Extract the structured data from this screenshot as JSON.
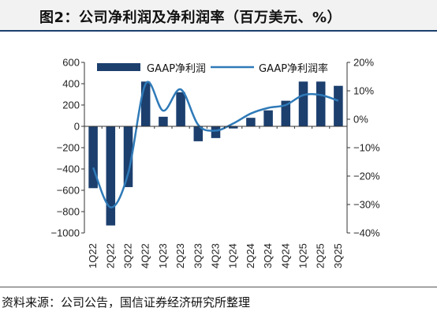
{
  "header": {
    "title": "图2：公司净利润及净利润率（百万美元、%）"
  },
  "footer": {
    "source": "资料来源：公司公告，国信证券经济研究所整理"
  },
  "colors": {
    "bar": "#1c3f6e",
    "line": "#2f7ab8",
    "axis": "#333333"
  },
  "chart_data": {
    "type": "bar",
    "categories": [
      "1Q22",
      "2Q22",
      "3Q22",
      "4Q22",
      "1Q23",
      "2Q23",
      "3Q23",
      "4Q23",
      "1Q24",
      "2Q24",
      "3Q24",
      "4Q24",
      "1Q25",
      "2Q25",
      "3Q25"
    ],
    "series": [
      {
        "name": "GAAP净利润",
        "type": "bar",
        "axis": "left",
        "values": [
          -580,
          -930,
          -570,
          420,
          90,
          320,
          -140,
          -110,
          -20,
          80,
          150,
          240,
          420,
          420,
          380
        ]
      },
      {
        "name": "GAAP净利润率",
        "type": "line",
        "axis": "right",
        "values": [
          -17,
          -31,
          -19,
          12.5,
          3,
          10.5,
          -2,
          -4,
          -1.5,
          2,
          4,
          5,
          8.5,
          8.5,
          6.5
        ]
      }
    ],
    "left_axis": {
      "min": -1000,
      "max": 600,
      "step": 200,
      "tick_labels": [
        "600",
        "400",
        "200",
        "0",
        "−200",
        "−400",
        "−600",
        "−800",
        "−1000"
      ]
    },
    "right_axis": {
      "min": -40,
      "max": 20,
      "step": 10,
      "tick_labels": [
        "20%",
        "10%",
        "0%",
        "−10%",
        "−20%",
        "−30%",
        "−40%"
      ]
    },
    "legend": {
      "placement": "top-center"
    },
    "grid": false
  }
}
